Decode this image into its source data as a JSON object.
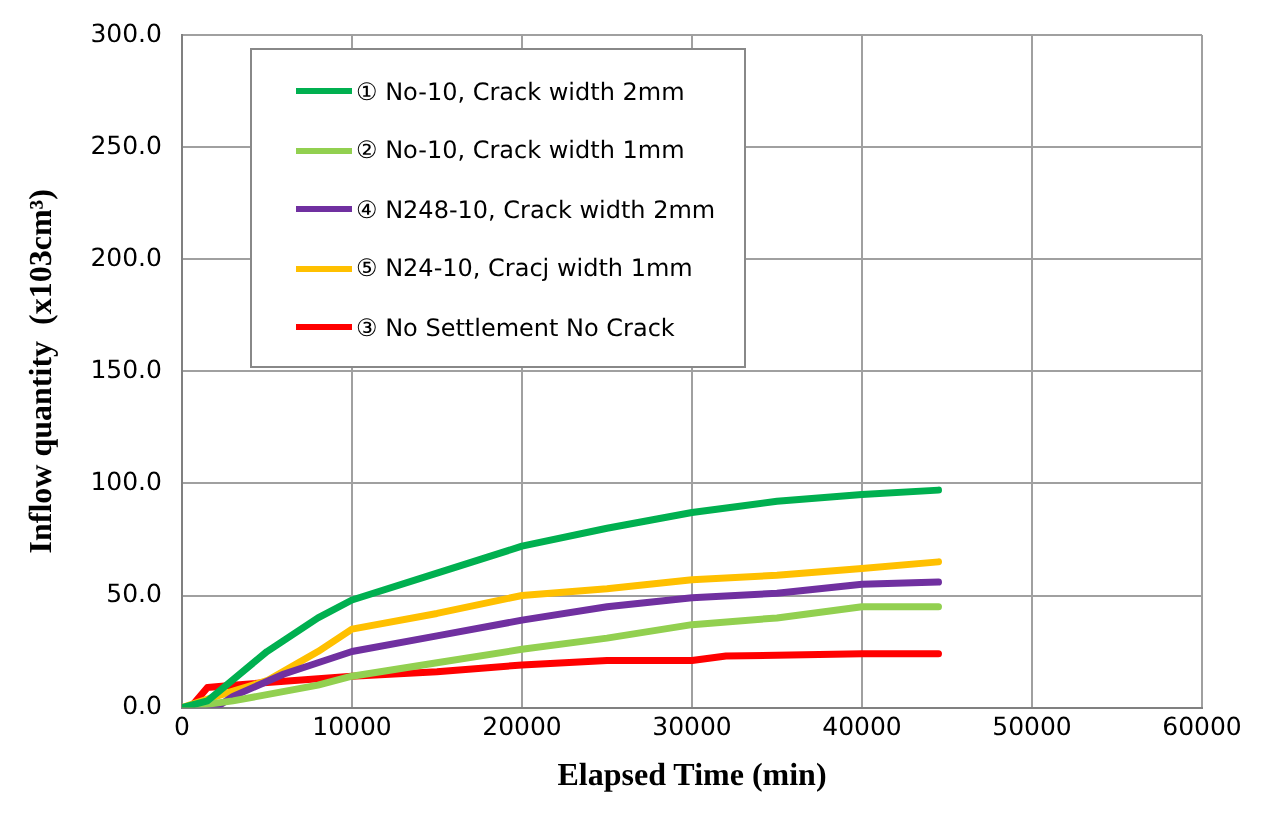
{
  "chart_data": {
    "type": "line",
    "xlabel": "Elapsed Time (min)",
    "ylabel": "Inflow quantity  (x103cm³)",
    "xlim": [
      0,
      60000
    ],
    "xticks": [
      0,
      10000,
      20000,
      30000,
      40000,
      50000,
      60000
    ],
    "ylim": [
      0,
      300
    ],
    "yticks": [
      {
        "value": 0,
        "label": "0.0"
      },
      {
        "value": 50,
        "label": "50.0"
      },
      {
        "value": 100,
        "label": "100.0"
      },
      {
        "value": 150,
        "label": "150.0"
      },
      {
        "value": 200,
        "label": "200.0"
      },
      {
        "value": 250,
        "label": "250.0"
      },
      {
        "value": 300,
        "label": "300.0"
      }
    ],
    "grid": true,
    "legend": "top left",
    "marker": "none",
    "line_style": "solid",
    "series": [
      {
        "name": "① No-10, Crack width 2mm",
        "color": "#00b050",
        "x": [
          0,
          1500,
          5000,
          8000,
          10000,
          15000,
          20000,
          25000,
          30000,
          35000,
          40000,
          44500
        ],
        "values": [
          0,
          3,
          25,
          40,
          48,
          60,
          72,
          80,
          87,
          92,
          95,
          97
        ]
      },
      {
        "name": "② No-10, Crack width 1mm",
        "color": "#92d050",
        "x": [
          0,
          3000,
          8000,
          10000,
          15000,
          20000,
          25000,
          30000,
          35000,
          40000,
          44500
        ],
        "values": [
          0,
          3,
          10,
          14,
          20,
          26,
          31,
          37,
          40,
          45,
          45
        ]
      },
      {
        "name": "④ N248-10, Crack width 2mm",
        "color": "#7030a0",
        "x": [
          0,
          2000,
          3000,
          6000,
          8000,
          10000,
          15000,
          20000,
          25000,
          30000,
          35000,
          40000,
          44500
        ],
        "values": [
          0,
          0,
          5,
          15,
          20,
          25,
          32,
          39,
          45,
          49,
          51,
          55,
          56
        ]
      },
      {
        "name": "⑤ N24-10, Cracj width 1mm",
        "color": "#ffc000",
        "x": [
          0,
          2000,
          5000,
          8000,
          10000,
          15000,
          20000,
          25000,
          30000,
          35000,
          40000,
          44500
        ],
        "values": [
          0,
          5,
          12,
          25,
          35,
          42,
          50,
          53,
          57,
          59,
          62,
          65
        ]
      },
      {
        "name": "③ No Settlement No Crack",
        "color": "#ff0000",
        "x": [
          0,
          500,
          1500,
          3000,
          10000,
          15000,
          20000,
          25000,
          30000,
          32000,
          40000,
          44500
        ],
        "values": [
          0,
          0,
          9,
          10,
          14,
          16,
          19,
          21,
          21,
          23,
          24,
          24
        ]
      }
    ]
  }
}
